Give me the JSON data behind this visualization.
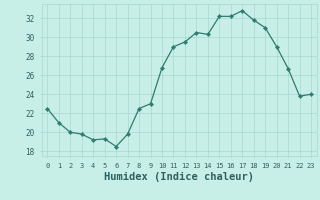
{
  "title": "",
  "xlabel": "Humidex (Indice chaleur)",
  "x": [
    0,
    1,
    2,
    3,
    4,
    5,
    6,
    7,
    8,
    9,
    10,
    11,
    12,
    13,
    14,
    15,
    16,
    17,
    18,
    19,
    20,
    21,
    22,
    23
  ],
  "y": [
    22.5,
    21.0,
    20.0,
    19.8,
    19.2,
    19.3,
    18.5,
    19.8,
    22.5,
    23.0,
    26.8,
    29.0,
    29.5,
    30.5,
    30.3,
    32.2,
    32.2,
    32.8,
    31.8,
    31.0,
    29.0,
    26.7,
    23.8,
    24.0
  ],
  "ylim": [
    17.5,
    33.5
  ],
  "yticks": [
    18,
    20,
    22,
    24,
    26,
    28,
    30,
    32
  ],
  "line_color": "#2e7d6e",
  "marker_color": "#2e7d6e",
  "bg_color": "#c8eee8",
  "grid_color": "#a8d8d0",
  "tick_label_color": "#2e6060",
  "xlabel_color": "#2e6060",
  "xlabel_fontsize": 7.5
}
